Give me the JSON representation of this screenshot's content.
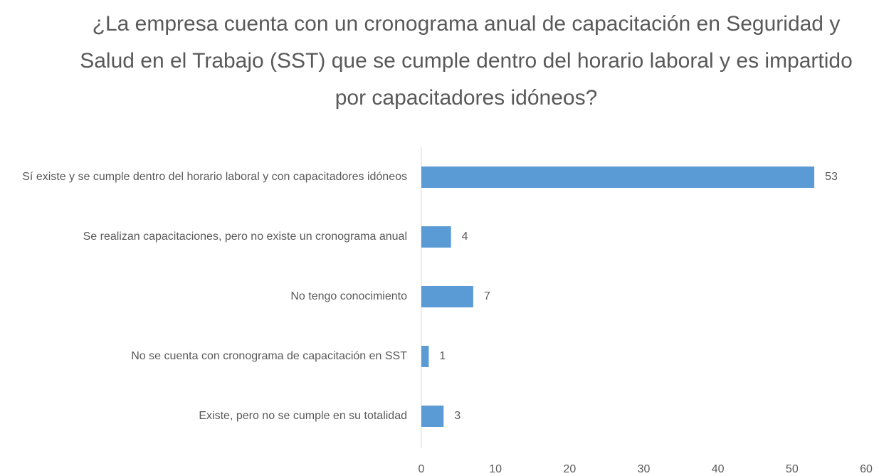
{
  "chart_data": {
    "type": "bar",
    "orientation": "horizontal",
    "title": "¿La empresa cuenta con un cronograma anual de capacitación en Seguridad y Salud en el Trabajo (SST) que se cumple dentro del horario laboral y es impartido por capacitadores idóneos?",
    "categories": [
      "Sí existe y se cumple dentro del horario laboral y con capacitadores idóneos",
      "Se realizan capacitaciones, pero no existe un cronograma anual",
      "No tengo conocimiento",
      "No se cuenta con cronograma de capacitación en SST",
      "Existe, pero no se cumple en su totalidad"
    ],
    "values": [
      53,
      4,
      7,
      1,
      3
    ],
    "color": "#5b9bd5",
    "xlim": [
      0,
      60
    ],
    "xticks": [
      0,
      10,
      20,
      30,
      40,
      50,
      60
    ],
    "grid": false
  }
}
